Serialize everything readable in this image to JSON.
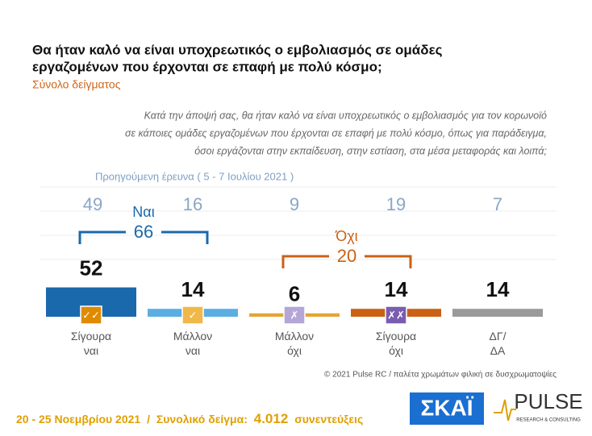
{
  "chart_data": {
    "type": "bar",
    "title_lines": [
      "Θα ήταν καλό να είναι υποχρεωτικός ο εμβολιασμός σε ομάδες",
      "εργαζομένων που έρχονται σε επαφή με πολύ κόσμο;"
    ],
    "subtitle": "Σύνολο δείγματος",
    "question_lines": [
      "Κατά την άποψή σας, θα ήταν καλό να είναι υποχρεωτικός ο εμβολιασμός για τον κορωνοϊό",
      "σε κάποιες ομάδες εργαζομένων που έρχονται σε επαφή με πολύ κόσμο, όπως για παράδειγμα,",
      "όσοι εργάζονται στην εκπαίδευση, στην εστίαση, στα μέσα μεταφοράς και λοιπά;"
    ],
    "previous_label": "Προηγούμενη έρευνα ( 5 - 7 Ιουλίου 2021 )",
    "categories": [
      "Σίγουρα ναι",
      "Μάλλον ναι",
      "Μάλλον όχι",
      "Σίγουρα όχι",
      "ΔΓ/ ΔΑ"
    ],
    "values": [
      52,
      14,
      6,
      14,
      14
    ],
    "colors": [
      "#1a69ad",
      "#5aaee2",
      "#e3a533",
      "#cc6014",
      "#9a9a9a"
    ],
    "previous_values": [
      49,
      16,
      9,
      19,
      7
    ],
    "icons": [
      "✓✓",
      "✓",
      "✗",
      "✗✗",
      null
    ],
    "icon_colors": [
      "#e08a00",
      "#f0b848",
      "#b4a6d6",
      "#7a5cb0",
      null
    ],
    "groups": [
      {
        "label": "Ναι",
        "value": 66,
        "color": "#1a69ad"
      },
      {
        "label": "Όχι",
        "value": 20,
        "color": "#cc6014"
      }
    ],
    "source": "© 2021 Pulse RC  /  παλέτα χρωμάτων φιλική σε δυσχρωματοψίες",
    "footer": {
      "date": "20 - 25 Νοεμβρίου 2021",
      "separator": "/",
      "sample_label": "Συνολικό δείγμα:",
      "sample_size": "4.012",
      "sample_unit": "συνεντεύξεις"
    },
    "logos": {
      "skai": "ΣΚΑΪ",
      "pulse": "PULSE",
      "pulse_tagline": "RESEARCH & CONSULTING"
    }
  }
}
